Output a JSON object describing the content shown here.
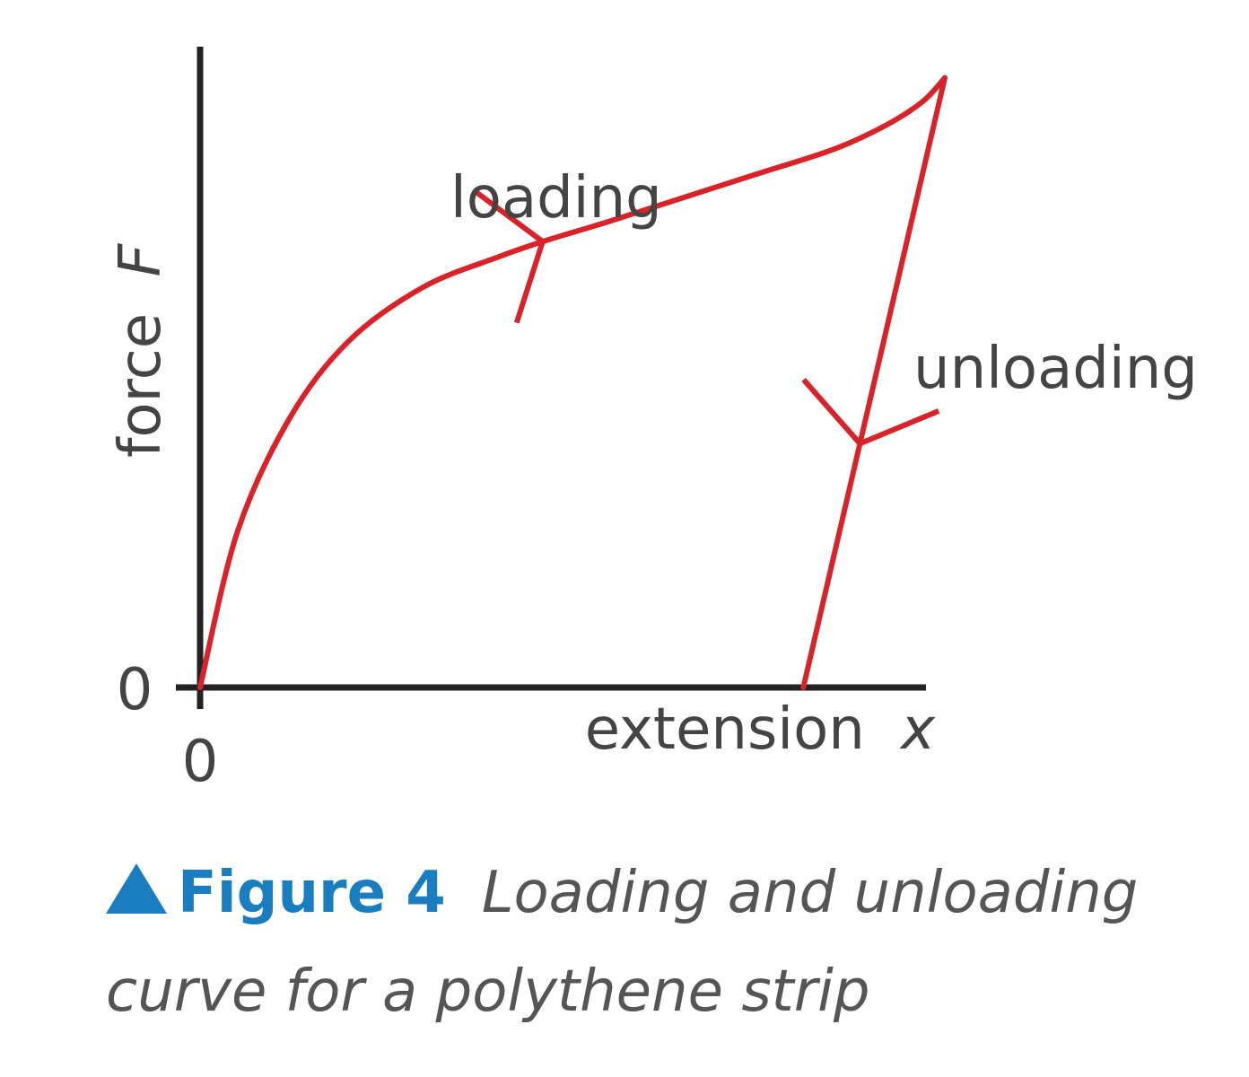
{
  "chart_data": {
    "type": "line",
    "xlabel_text": "extension",
    "xlabel_symbol": "x",
    "ylabel_text": "force",
    "ylabel_symbol": "F",
    "x_tick_labels": [
      "0"
    ],
    "y_tick_labels": [
      "0"
    ],
    "xlim": [
      0,
      1
    ],
    "ylim": [
      0,
      1
    ],
    "grid": false,
    "series": [
      {
        "name": "loading",
        "color": "#d8232a",
        "direction": "forward",
        "x": [
          0.0,
          0.05,
          0.12,
          0.2,
          0.3,
          0.4,
          0.46,
          0.55,
          0.65,
          0.75,
          0.85,
          0.92,
          0.97,
          1.0
        ],
        "y": [
          0.0,
          0.26,
          0.45,
          0.58,
          0.67,
          0.72,
          0.746,
          0.78,
          0.82,
          0.86,
          0.9,
          0.94,
          0.98,
          1.02
        ]
      },
      {
        "name": "unloading",
        "color": "#d8232a",
        "direction": "backward",
        "x": [
          1.0,
          0.81
        ],
        "y": [
          1.02,
          0.0
        ]
      }
    ],
    "annotations": [
      {
        "text": "loading",
        "near_series": "loading"
      },
      {
        "text": "unloading",
        "near_series": "unloading"
      }
    ]
  },
  "caption": {
    "icon": "blue-triangle-icon",
    "number": "Figure 4",
    "text": "Loading and unloading curve for a polythene strip",
    "accent_color": "#1a7dc0"
  }
}
